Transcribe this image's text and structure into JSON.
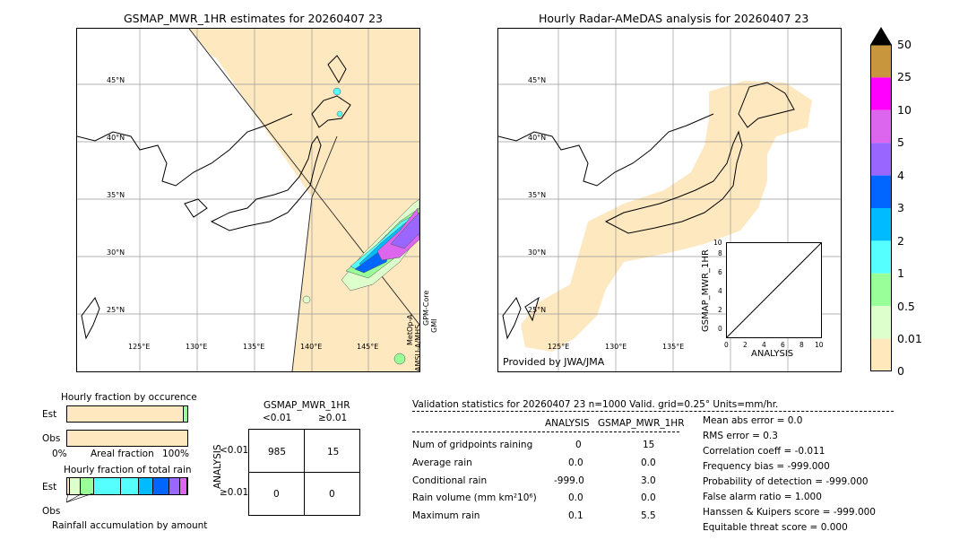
{
  "left_map": {
    "title": "GSMAP_MWR_1HR estimates for 20260407 23",
    "lat_labels": [
      "45°N",
      "40°N",
      "35°N",
      "30°N",
      "25°N"
    ],
    "lon_labels": [
      "125°E",
      "130°E",
      "135°E",
      "140°E",
      "145°E"
    ],
    "swath_labels": [
      "MetOp-A",
      "AMSU-A/MHS",
      "GPM-Core",
      "GMI"
    ]
  },
  "right_map": {
    "title": "Hourly Radar-AMeDAS analysis for 20260407 23",
    "lat_labels": [
      "45°N",
      "40°N",
      "35°N",
      "30°N",
      "25°N"
    ],
    "lon_labels": [
      "125°E",
      "130°E",
      "135°E"
    ],
    "credit": "Provided by JWA/JMA"
  },
  "inset": {
    "ylabel": "GSMAP_MWR_1HR",
    "xlabel": "ANALYSIS",
    "ticks": [
      "0",
      "2",
      "4",
      "6",
      "8",
      "10"
    ]
  },
  "colorbar": {
    "labels": [
      "50",
      "25",
      "10",
      "5",
      "4",
      "3",
      "2",
      "1",
      "0.5",
      "0.01",
      "0"
    ],
    "colors": [
      "#c8963c",
      "#ff00ff",
      "#dd66ee",
      "#9966ff",
      "#0066ff",
      "#00bbff",
      "#55ffff",
      "#99ff99",
      "#ddffcc",
      "#ffe8bb"
    ]
  },
  "occurrence": {
    "title": "Hourly fraction by occurence",
    "est_label": "Est",
    "obs_label": "Obs",
    "axis_left": "0%",
    "axis_mid": "Areal fraction",
    "axis_right": "100%",
    "est_fraction": 0.985,
    "obs_fraction": 1.0
  },
  "total_rain": {
    "title": "Hourly fraction of total rain",
    "est_label": "Est",
    "obs_label": "Obs",
    "footer": "Rainfall accumulation by amount",
    "est_colors": [
      "#ffe8bb",
      "#ddffcc",
      "#99ff99",
      "#55ffff",
      "#55ffff",
      "#00bbff",
      "#0066ff",
      "#9966ff",
      "#dd66ee"
    ]
  },
  "contingency": {
    "title": "GSMAP_MWR_1HR",
    "col_labels": [
      "<0.01",
      "≥0.01"
    ],
    "row_axis": "ANALYSIS",
    "row_labels": [
      "<0.01",
      "≥0.01"
    ],
    "cells": [
      "985",
      "15",
      "0",
      "0"
    ]
  },
  "stats": {
    "header": "Validation statistics for 20260407 23  n=1000 Valid. grid=0.25°  Units=mm/hr.",
    "col1": "ANALYSIS",
    "col2": "GSMAP_MWR_1HR",
    "rows": [
      {
        "name": "Num of gridpoints raining",
        "a": "0",
        "b": "15"
      },
      {
        "name": "Average rain",
        "a": "0.0",
        "b": "0.0"
      },
      {
        "name": "Conditional rain",
        "a": "-999.0",
        "b": "3.0"
      },
      {
        "name": "Rain volume (mm km²10⁶)",
        "a": "0.0",
        "b": "0.0"
      },
      {
        "name": "Maximum rain",
        "a": "0.1",
        "b": "5.5"
      }
    ],
    "scores": [
      "Mean abs error =    0.0",
      "RMS error =    0.3",
      "Correlation coeff = -0.011",
      "Frequency bias = -999.000",
      "Probability of detection = -999.000",
      "False alarm ratio =  1.000",
      "Hanssen & Kuipers score = -999.000",
      "Equitable threat score =  0.000"
    ]
  },
  "chart_data": [
    {
      "type": "heatmap",
      "title": "GSMAP_MWR_1HR estimates for 20260407 23",
      "lat_ticks": [
        45,
        40,
        35,
        30,
        25
      ],
      "lon_ticks": [
        125,
        130,
        135,
        140,
        145
      ],
      "units": "mm/hr"
    },
    {
      "type": "heatmap",
      "title": "Hourly Radar-AMeDAS analysis for 20260407 23",
      "lat_ticks": [
        45,
        40,
        35,
        30,
        25
      ],
      "lon_ticks": [
        125,
        130,
        135
      ],
      "units": "mm/hr"
    },
    {
      "type": "scatter",
      "xlabel": "ANALYSIS",
      "ylabel": "GSMAP_MWR_1HR",
      "xlim": [
        0,
        10
      ],
      "ylim": [
        0,
        10
      ],
      "reference_line": [
        [
          0,
          0
        ],
        [
          10,
          10
        ]
      ]
    },
    {
      "type": "table",
      "title": "GSMAP_MWR_1HR",
      "columns": [
        "<0.01",
        "≥0.01"
      ],
      "rows": [
        "<0.01",
        "≥0.01"
      ],
      "values": [
        [
          985,
          15
        ],
        [
          0,
          0
        ]
      ]
    }
  ]
}
